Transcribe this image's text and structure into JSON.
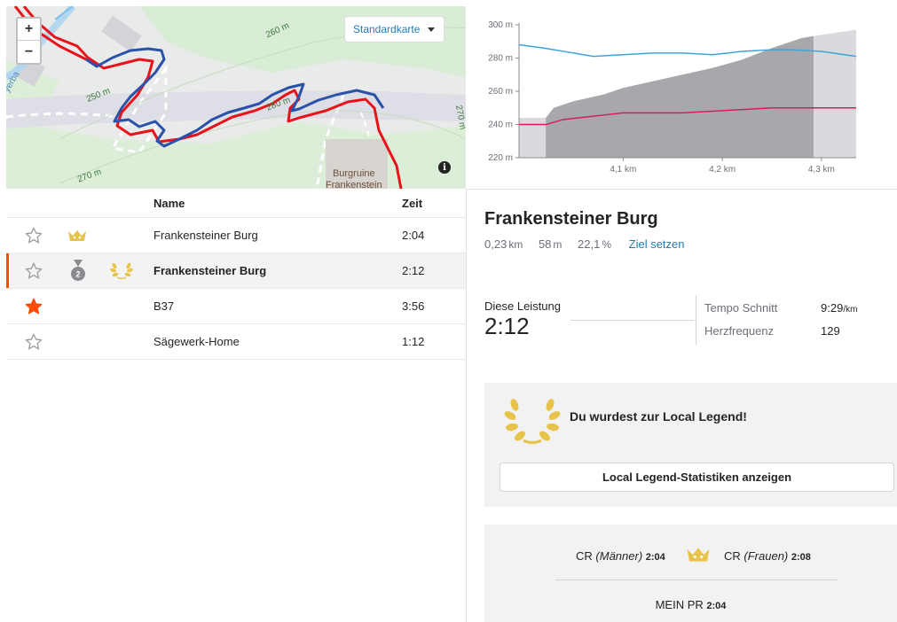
{
  "map": {
    "zoom_in": "+",
    "zoom_out": "−",
    "map_type": "Standardkarte",
    "info": "i",
    "contour_labels": [
      "260 m",
      "250 m",
      "280 m",
      "270 m",
      "270 m"
    ],
    "water_label": "yerba",
    "poi_line1": "Burgruine",
    "poi_line2": "Frankenstein"
  },
  "table": {
    "header_name": "Name",
    "header_time": "Zeit",
    "rows": [
      {
        "name": "Frankensteiner Burg",
        "time": "2:04",
        "starred": false,
        "badge": "crown"
      },
      {
        "name": "Frankensteiner Burg",
        "time": "2:12",
        "starred": false,
        "badge": "medal-2",
        "medal_number": "2",
        "active": true
      },
      {
        "name": "B37",
        "time": "3:56",
        "starred": true
      },
      {
        "name": "Sägewerk-Home",
        "time": "1:12",
        "starred": false
      }
    ]
  },
  "chart_data": {
    "type": "area",
    "y_ticks": [
      "300 m",
      "280 m",
      "260 m",
      "240 m",
      "220 m"
    ],
    "ylim": [
      220,
      300
    ],
    "x_ticks": [
      "4,1 km",
      "4,2 km",
      "4,3 km"
    ],
    "x_tick_values": [
      4.1,
      4.2,
      4.3
    ],
    "xlim": [
      3.995,
      4.335
    ],
    "highlight_range": [
      4.022,
      4.292
    ],
    "elevation": {
      "x": [
        3.995,
        4.022,
        4.03,
        4.05,
        4.08,
        4.1,
        4.13,
        4.16,
        4.19,
        4.22,
        4.25,
        4.28,
        4.3,
        4.335
      ],
      "y": [
        244,
        244,
        250,
        254,
        258,
        262,
        266,
        270,
        274,
        279,
        286,
        292,
        294,
        297
      ]
    },
    "series": [
      {
        "x": [
          3.995,
          4.02,
          4.05,
          4.07,
          4.1,
          4.13,
          4.16,
          4.19,
          4.22,
          4.25,
          4.27,
          4.3,
          4.335
        ],
        "y": [
          288,
          286,
          283,
          281,
          282,
          283,
          283,
          282,
          284,
          285,
          285,
          284,
          281
        ],
        "color": "#3fa3d8"
      },
      {
        "x": [
          3.995,
          4.022,
          4.04,
          4.07,
          4.1,
          4.13,
          4.16,
          4.19,
          4.22,
          4.25,
          4.28,
          4.335
        ],
        "y": [
          240,
          240,
          243,
          245,
          247,
          247,
          247,
          248,
          249,
          250,
          250,
          250
        ],
        "color": "#d41e5b"
      }
    ],
    "colors": {
      "area": "#b4b4b8",
      "area_outside": "#dadade",
      "highlight": "#a8a8ac"
    }
  },
  "segment": {
    "title": "Frankensteiner Burg",
    "distance": "0,23",
    "distance_unit": "km",
    "elevation": "58",
    "elevation_unit": "m",
    "grade": "22,1",
    "grade_unit": "%",
    "goal_link": "Ziel setzen"
  },
  "effort": {
    "label": "Diese Leistung",
    "time": "2:12",
    "pace_label": "Tempo Schnitt",
    "pace_value": "9:29",
    "pace_unit": "/km",
    "hr_label": "Herzfrequenz",
    "hr_value": "129"
  },
  "legend": {
    "title": "Du wurdest zur Local Legend!",
    "button": "Local Legend-Statistiken anzeigen"
  },
  "records": {
    "cr_prefix": "CR",
    "cr_men_label": "(Männer)",
    "cr_men_time": "2:04",
    "cr_women_label": "(Frauen)",
    "cr_women_time": "2:08",
    "pr_label": "MEIN PR",
    "pr_time": "2:04"
  },
  "colors": {
    "accent": "#fc4c02",
    "link": "#1e7db6",
    "gold": "#e8c34a",
    "route_red": "#e8121a",
    "route_blue": "#2a52a8"
  }
}
